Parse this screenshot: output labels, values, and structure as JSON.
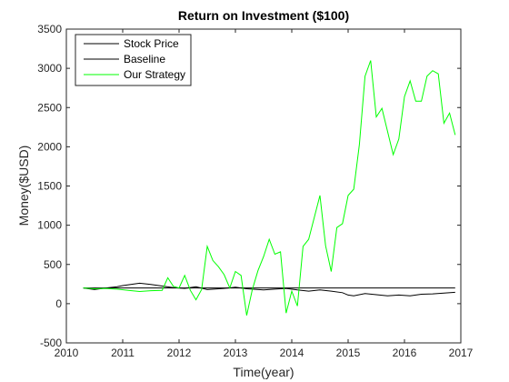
{
  "chart_data": {
    "type": "line",
    "title": "Return on Investment ($100)",
    "xlabel": "Time(year)",
    "ylabel": "Money($USD)",
    "xlim": [
      2010,
      2017
    ],
    "ylim": [
      -500,
      3500
    ],
    "x_ticks": [
      2010,
      2011,
      2012,
      2013,
      2014,
      2015,
      2016,
      2017
    ],
    "y_ticks": [
      -500,
      0,
      500,
      1000,
      1500,
      2000,
      2500,
      3000,
      3500
    ],
    "grid": false,
    "legend_position": "top-left",
    "series": [
      {
        "name": "Stock Price",
        "color": "#000000",
        "x": [
          2010.3,
          2010.5,
          2010.7,
          2010.9,
          2011.0,
          2011.2,
          2011.3,
          2011.5,
          2011.7,
          2011.9,
          2012.1,
          2012.3,
          2012.5,
          2012.8,
          2013.0,
          2013.2,
          2013.5,
          2013.7,
          2013.9,
          2014.1,
          2014.3,
          2014.5,
          2014.7,
          2014.9,
          2015.0,
          2015.1,
          2015.3,
          2015.5,
          2015.7,
          2015.9,
          2016.1,
          2016.3,
          2016.5,
          2016.7,
          2016.9
        ],
        "values": [
          200,
          180,
          200,
          215,
          230,
          250,
          260,
          245,
          225,
          205,
          195,
          215,
          180,
          195,
          210,
          190,
          175,
          185,
          195,
          175,
          160,
          175,
          160,
          140,
          110,
          100,
          130,
          115,
          100,
          110,
          100,
          120,
          125,
          135,
          145
        ]
      },
      {
        "name": "Baseline",
        "color": "#000000",
        "x": [
          2010.3,
          2016.9
        ],
        "values": [
          200,
          200
        ]
      },
      {
        "name": "Our Strategy",
        "color": "#00ff00",
        "x": [
          2010.3,
          2010.5,
          2010.7,
          2010.9,
          2011.1,
          2011.3,
          2011.5,
          2011.7,
          2011.8,
          2011.9,
          2012.0,
          2012.1,
          2012.2,
          2012.3,
          2012.4,
          2012.5,
          2012.6,
          2012.7,
          2012.8,
          2012.9,
          2013.0,
          2013.1,
          2013.2,
          2013.3,
          2013.4,
          2013.5,
          2013.6,
          2013.7,
          2013.8,
          2013.9,
          2014.0,
          2014.1,
          2014.2,
          2014.3,
          2014.4,
          2014.5,
          2014.6,
          2014.7,
          2014.8,
          2014.9,
          2015.0,
          2015.1,
          2015.2,
          2015.3,
          2015.4,
          2015.5,
          2015.6,
          2015.8,
          2015.9,
          2016.0,
          2016.1,
          2016.2,
          2016.3,
          2016.4,
          2016.5,
          2016.6,
          2016.7,
          2016.8,
          2016.9
        ],
        "values": [
          200,
          190,
          195,
          185,
          170,
          155,
          165,
          170,
          330,
          220,
          200,
          360,
          170,
          50,
          180,
          730,
          550,
          470,
          370,
          200,
          410,
          360,
          -150,
          180,
          420,
          600,
          820,
          630,
          660,
          -120,
          160,
          -30,
          730,
          820,
          1100,
          1380,
          740,
          410,
          970,
          1020,
          1380,
          1460,
          2030,
          2900,
          3100,
          2380,
          2490,
          1900,
          2100,
          2640,
          2840,
          2580,
          2580,
          2900,
          2970,
          2930,
          2300,
          2430,
          2150
        ]
      }
    ]
  }
}
